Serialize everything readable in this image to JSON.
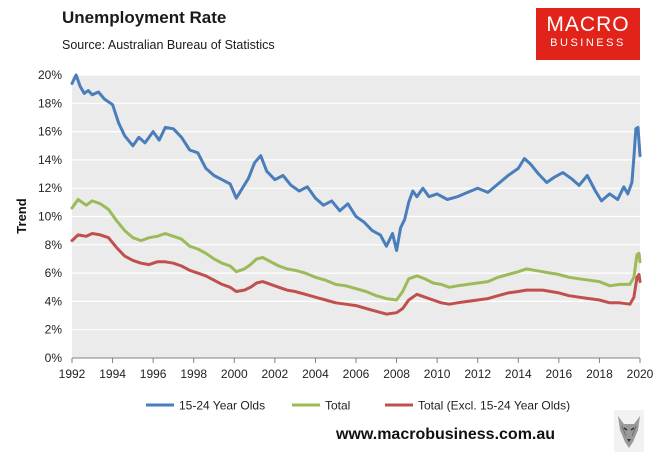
{
  "header": {
    "title": "Unemployment Rate",
    "source": "Source: Australian Bureau of Statistics"
  },
  "logo": {
    "main": "MACRO",
    "sub": "BUSINESS",
    "color": "#e2231a"
  },
  "footer": {
    "website": "www.macrobusiness.com.au",
    "mascot_icon": "wolf-icon"
  },
  "chart_data": {
    "type": "line",
    "ylabel": "Trend",
    "xlabel": "",
    "ylim": [
      0,
      20
    ],
    "xlim": [
      1992,
      2020
    ],
    "y_ticks": [
      0,
      2,
      4,
      6,
      8,
      10,
      12,
      14,
      16,
      18,
      20
    ],
    "y_tick_labels": [
      "0%",
      "2%",
      "4%",
      "6%",
      "8%",
      "10%",
      "12%",
      "14%",
      "16%",
      "18%",
      "20%"
    ],
    "x_ticks": [
      1992,
      1994,
      1996,
      1998,
      2000,
      2002,
      2004,
      2006,
      2008,
      2010,
      2012,
      2014,
      2016,
      2018,
      2020
    ],
    "x_tick_labels": [
      "1992",
      "1994",
      "1996",
      "1998",
      "2000",
      "2002",
      "2004",
      "2006",
      "2008",
      "2010",
      "2012",
      "2014",
      "2016",
      "2018",
      "2020"
    ],
    "grid": true,
    "legend_position": "bottom",
    "series": [
      {
        "name": "15-24 Year Olds",
        "color": "#4a7ebb",
        "points": [
          [
            1992,
            19.4
          ],
          [
            1992.2,
            20
          ],
          [
            1992.4,
            19.2
          ],
          [
            1992.6,
            18.7
          ],
          [
            1992.8,
            18.9
          ],
          [
            1993,
            18.6
          ],
          [
            1993.3,
            18.8
          ],
          [
            1993.6,
            18.3
          ],
          [
            1994,
            17.9
          ],
          [
            1994.3,
            16.6
          ],
          [
            1994.6,
            15.7
          ],
          [
            1995,
            15.0
          ],
          [
            1995.3,
            15.6
          ],
          [
            1995.6,
            15.2
          ],
          [
            1996,
            16.0
          ],
          [
            1996.3,
            15.4
          ],
          [
            1996.6,
            16.3
          ],
          [
            1997,
            16.2
          ],
          [
            1997.4,
            15.6
          ],
          [
            1997.8,
            14.7
          ],
          [
            1998.2,
            14.5
          ],
          [
            1998.6,
            13.4
          ],
          [
            1999,
            12.9
          ],
          [
            1999.4,
            12.6
          ],
          [
            1999.8,
            12.3
          ],
          [
            2000.1,
            11.3
          ],
          [
            2000.4,
            12.0
          ],
          [
            2000.7,
            12.7
          ],
          [
            2001,
            13.8
          ],
          [
            2001.3,
            14.3
          ],
          [
            2001.6,
            13.2
          ],
          [
            2002,
            12.6
          ],
          [
            2002.4,
            12.9
          ],
          [
            2002.8,
            12.2
          ],
          [
            2003.2,
            11.8
          ],
          [
            2003.6,
            12.1
          ],
          [
            2004,
            11.3
          ],
          [
            2004.4,
            10.8
          ],
          [
            2004.8,
            11.1
          ],
          [
            2005.2,
            10.4
          ],
          [
            2005.6,
            10.9
          ],
          [
            2006,
            10.0
          ],
          [
            2006.4,
            9.6
          ],
          [
            2006.8,
            9.0
          ],
          [
            2007.2,
            8.7
          ],
          [
            2007.5,
            7.9
          ],
          [
            2007.8,
            8.8
          ],
          [
            2008,
            7.6
          ],
          [
            2008.2,
            9.2
          ],
          [
            2008.4,
            9.8
          ],
          [
            2008.6,
            11.0
          ],
          [
            2008.8,
            11.8
          ],
          [
            2009,
            11.4
          ],
          [
            2009.3,
            12.0
          ],
          [
            2009.6,
            11.4
          ],
          [
            2010,
            11.6
          ],
          [
            2010.5,
            11.2
          ],
          [
            2011,
            11.4
          ],
          [
            2011.5,
            11.7
          ],
          [
            2012,
            12.0
          ],
          [
            2012.5,
            11.7
          ],
          [
            2013,
            12.3
          ],
          [
            2013.5,
            12.9
          ],
          [
            2014,
            13.4
          ],
          [
            2014.3,
            14.1
          ],
          [
            2014.6,
            13.7
          ],
          [
            2015,
            13.0
          ],
          [
            2015.4,
            12.4
          ],
          [
            2015.8,
            12.8
          ],
          [
            2016.2,
            13.1
          ],
          [
            2016.6,
            12.7
          ],
          [
            2017,
            12.2
          ],
          [
            2017.4,
            12.9
          ],
          [
            2017.8,
            11.8
          ],
          [
            2018.1,
            11.1
          ],
          [
            2018.5,
            11.6
          ],
          [
            2018.9,
            11.2
          ],
          [
            2019.2,
            12.1
          ],
          [
            2019.4,
            11.6
          ],
          [
            2019.6,
            12.4
          ],
          [
            2019.7,
            14.2
          ],
          [
            2019.8,
            16.2
          ],
          [
            2019.9,
            16.3
          ],
          [
            2020,
            14.3
          ]
        ]
      },
      {
        "name": "Total",
        "color": "#9bbb59",
        "points": [
          [
            1992,
            10.6
          ],
          [
            1992.3,
            11.2
          ],
          [
            1992.7,
            10.8
          ],
          [
            1993,
            11.1
          ],
          [
            1993.4,
            10.9
          ],
          [
            1993.8,
            10.5
          ],
          [
            1994.2,
            9.7
          ],
          [
            1994.6,
            9.0
          ],
          [
            1995,
            8.5
          ],
          [
            1995.4,
            8.3
          ],
          [
            1995.8,
            8.5
          ],
          [
            1996.2,
            8.6
          ],
          [
            1996.6,
            8.8
          ],
          [
            1997,
            8.6
          ],
          [
            1997.4,
            8.4
          ],
          [
            1997.8,
            7.9
          ],
          [
            1998.2,
            7.7
          ],
          [
            1998.6,
            7.4
          ],
          [
            1999,
            7.0
          ],
          [
            1999.4,
            6.7
          ],
          [
            1999.8,
            6.5
          ],
          [
            2000.1,
            6.1
          ],
          [
            2000.5,
            6.3
          ],
          [
            2000.8,
            6.6
          ],
          [
            2001.1,
            7.0
          ],
          [
            2001.4,
            7.1
          ],
          [
            2001.8,
            6.8
          ],
          [
            2002.2,
            6.5
          ],
          [
            2002.6,
            6.3
          ],
          [
            2003,
            6.2
          ],
          [
            2003.5,
            6.0
          ],
          [
            2004,
            5.7
          ],
          [
            2004.5,
            5.5
          ],
          [
            2005,
            5.2
          ],
          [
            2005.5,
            5.1
          ],
          [
            2006,
            4.9
          ],
          [
            2006.5,
            4.7
          ],
          [
            2007,
            4.4
          ],
          [
            2007.5,
            4.2
          ],
          [
            2008,
            4.1
          ],
          [
            2008.3,
            4.7
          ],
          [
            2008.6,
            5.6
          ],
          [
            2009,
            5.8
          ],
          [
            2009.4,
            5.6
          ],
          [
            2009.8,
            5.3
          ],
          [
            2010.2,
            5.2
          ],
          [
            2010.6,
            5.0
          ],
          [
            2011,
            5.1
          ],
          [
            2011.5,
            5.2
          ],
          [
            2012,
            5.3
          ],
          [
            2012.5,
            5.4
          ],
          [
            2013,
            5.7
          ],
          [
            2013.5,
            5.9
          ],
          [
            2014,
            6.1
          ],
          [
            2014.4,
            6.3
          ],
          [
            2014.8,
            6.2
          ],
          [
            2015.2,
            6.1
          ],
          [
            2015.6,
            6.0
          ],
          [
            2016,
            5.9
          ],
          [
            2016.5,
            5.7
          ],
          [
            2017,
            5.6
          ],
          [
            2017.5,
            5.5
          ],
          [
            2018,
            5.4
          ],
          [
            2018.5,
            5.1
          ],
          [
            2019,
            5.2
          ],
          [
            2019.5,
            5.2
          ],
          [
            2019.7,
            5.7
          ],
          [
            2019.85,
            7.3
          ],
          [
            2019.95,
            7.4
          ],
          [
            2020,
            6.8
          ]
        ]
      },
      {
        "name": "Total (Excl. 15-24 Year Olds)",
        "color": "#c0504d",
        "points": [
          [
            1992,
            8.3
          ],
          [
            1992.3,
            8.7
          ],
          [
            1992.7,
            8.6
          ],
          [
            1993,
            8.8
          ],
          [
            1993.4,
            8.7
          ],
          [
            1993.8,
            8.5
          ],
          [
            1994.2,
            7.8
          ],
          [
            1994.6,
            7.2
          ],
          [
            1995,
            6.9
          ],
          [
            1995.4,
            6.7
          ],
          [
            1995.8,
            6.6
          ],
          [
            1996.2,
            6.8
          ],
          [
            1996.6,
            6.8
          ],
          [
            1997,
            6.7
          ],
          [
            1997.4,
            6.5
          ],
          [
            1997.8,
            6.2
          ],
          [
            1998.2,
            6.0
          ],
          [
            1998.6,
            5.8
          ],
          [
            1999,
            5.5
          ],
          [
            1999.4,
            5.2
          ],
          [
            1999.8,
            5.0
          ],
          [
            2000.1,
            4.7
          ],
          [
            2000.5,
            4.8
          ],
          [
            2000.8,
            5.0
          ],
          [
            2001.1,
            5.3
          ],
          [
            2001.4,
            5.4
          ],
          [
            2001.8,
            5.2
          ],
          [
            2002.2,
            5.0
          ],
          [
            2002.6,
            4.8
          ],
          [
            2003,
            4.7
          ],
          [
            2003.5,
            4.5
          ],
          [
            2004,
            4.3
          ],
          [
            2004.5,
            4.1
          ],
          [
            2005,
            3.9
          ],
          [
            2005.5,
            3.8
          ],
          [
            2006,
            3.7
          ],
          [
            2006.5,
            3.5
          ],
          [
            2007,
            3.3
          ],
          [
            2007.5,
            3.1
          ],
          [
            2008,
            3.2
          ],
          [
            2008.3,
            3.5
          ],
          [
            2008.6,
            4.1
          ],
          [
            2009,
            4.5
          ],
          [
            2009.4,
            4.3
          ],
          [
            2009.8,
            4.1
          ],
          [
            2010.2,
            3.9
          ],
          [
            2010.6,
            3.8
          ],
          [
            2011,
            3.9
          ],
          [
            2011.5,
            4.0
          ],
          [
            2012,
            4.1
          ],
          [
            2012.5,
            4.2
          ],
          [
            2013,
            4.4
          ],
          [
            2013.5,
            4.6
          ],
          [
            2014,
            4.7
          ],
          [
            2014.4,
            4.8
          ],
          [
            2014.8,
            4.8
          ],
          [
            2015.2,
            4.8
          ],
          [
            2015.6,
            4.7
          ],
          [
            2016,
            4.6
          ],
          [
            2016.5,
            4.4
          ],
          [
            2017,
            4.3
          ],
          [
            2017.5,
            4.2
          ],
          [
            2018,
            4.1
          ],
          [
            2018.5,
            3.9
          ],
          [
            2019,
            3.9
          ],
          [
            2019.5,
            3.8
          ],
          [
            2019.7,
            4.3
          ],
          [
            2019.85,
            5.7
          ],
          [
            2019.95,
            5.9
          ],
          [
            2020,
            5.4
          ]
        ]
      }
    ]
  }
}
